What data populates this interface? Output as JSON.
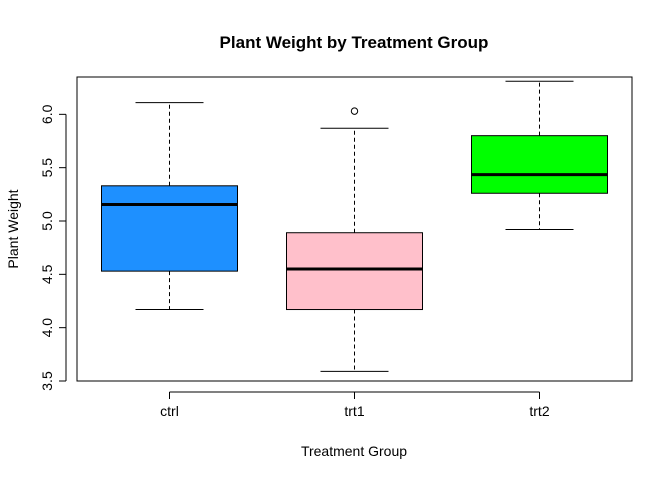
{
  "chart_data": {
    "type": "boxplot",
    "title": "Plant Weight by Treatment Group",
    "xlabel": "Treatment Group",
    "ylabel": "Plant Weight",
    "ylim": [
      3.5,
      6.35
    ],
    "yticks": [
      "3.5",
      "4.0",
      "4.5",
      "5.0",
      "5.5",
      "6.0"
    ],
    "grid": false,
    "legend": "none",
    "categories": [
      "ctrl",
      "trt1",
      "trt2"
    ],
    "boxes": [
      {
        "category": "ctrl",
        "whisker_low": 4.17,
        "q1": 4.53,
        "median": 5.155,
        "q3": 5.33,
        "whisker_high": 6.11,
        "outliers": [],
        "color": "#1E90FF"
      },
      {
        "category": "trt1",
        "whisker_low": 3.59,
        "q1": 4.17,
        "median": 4.55,
        "q3": 4.89,
        "whisker_high": 5.87,
        "outliers": [
          6.03
        ],
        "color": "#FFC0CB"
      },
      {
        "category": "trt2",
        "whisker_low": 4.92,
        "q1": 5.26,
        "median": 5.435,
        "q3": 5.8,
        "whisker_high": 6.31,
        "outliers": [],
        "color": "#00FF00"
      }
    ]
  }
}
